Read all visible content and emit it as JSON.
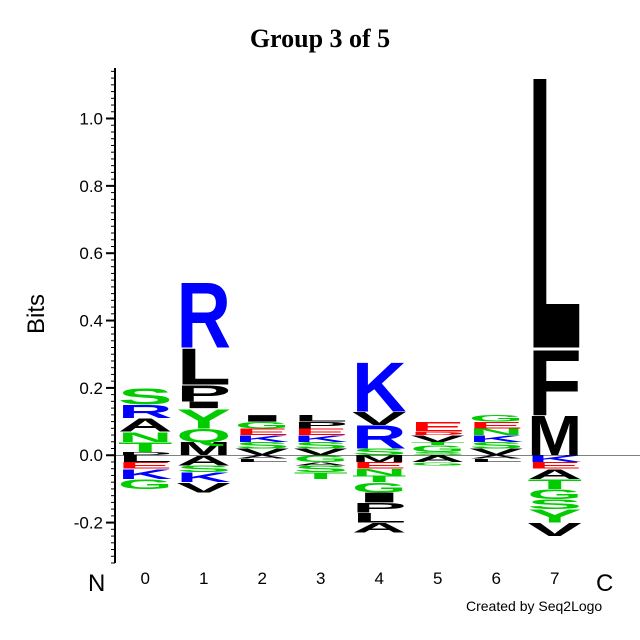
{
  "chart_data": {
    "type": "sequence-logo",
    "title": "Group 3 of 5",
    "ylabel": "Bits",
    "ylim": [
      -0.32,
      1.15
    ],
    "yticks": [
      -0.2,
      0.0,
      0.2,
      0.4,
      0.6,
      0.8,
      1.0
    ],
    "positions": [
      "0",
      "1",
      "2",
      "3",
      "4",
      "5",
      "6",
      "7"
    ],
    "n_label": "N",
    "c_label": "C",
    "colors": {
      "blue": "#0000ff",
      "green": "#00cc00",
      "red": "#ff0000",
      "black": "#000000"
    },
    "columns": [
      {
        "position": "0",
        "positive": [
          {
            "letter": "D",
            "bits": 0.01,
            "color": "black"
          },
          {
            "letter": "T",
            "bits": 0.03,
            "color": "green"
          },
          {
            "letter": "N",
            "bits": 0.03,
            "color": "green"
          },
          {
            "letter": "A",
            "bits": 0.04,
            "color": "black"
          },
          {
            "letter": "R",
            "bits": 0.04,
            "color": "blue"
          },
          {
            "letter": "S",
            "bits": 0.05,
            "color": "green"
          }
        ],
        "negative": [
          {
            "letter": "L",
            "bits": 0.02,
            "color": "black"
          },
          {
            "letter": "E",
            "bits": 0.02,
            "color": "red"
          },
          {
            "letter": "K",
            "bits": 0.03,
            "color": "blue"
          },
          {
            "letter": "G",
            "bits": 0.03,
            "color": "green"
          }
        ]
      },
      {
        "position": "1",
        "positive": [
          {
            "letter": "M",
            "bits": 0.04,
            "color": "black"
          },
          {
            "letter": "Q",
            "bits": 0.04,
            "color": "green"
          },
          {
            "letter": "Y",
            "bits": 0.06,
            "color": "green"
          },
          {
            "letter": "I",
            "bits": 0.02,
            "color": "black"
          },
          {
            "letter": "P",
            "bits": 0.05,
            "color": "black"
          },
          {
            "letter": "L",
            "bits": 0.11,
            "color": "black"
          },
          {
            "letter": "R",
            "bits": 0.2,
            "color": "blue"
          }
        ],
        "negative": [
          {
            "letter": "A",
            "bits": 0.03,
            "color": "black"
          },
          {
            "letter": "S",
            "bits": 0.02,
            "color": "green"
          },
          {
            "letter": "K",
            "bits": 0.03,
            "color": "blue"
          },
          {
            "letter": "V",
            "bits": 0.03,
            "color": "black"
          }
        ]
      },
      {
        "position": "2",
        "positive": [
          {
            "letter": "V",
            "bits": 0.02,
            "color": "black"
          },
          {
            "letter": "S",
            "bits": 0.02,
            "color": "green"
          },
          {
            "letter": "K",
            "bits": 0.02,
            "color": "blue"
          },
          {
            "letter": "E",
            "bits": 0.02,
            "color": "red"
          },
          {
            "letter": "G",
            "bits": 0.02,
            "color": "green"
          },
          {
            "letter": "I",
            "bits": 0.02,
            "color": "black"
          }
        ],
        "negative": [
          {
            "letter": "A",
            "bits": 0.01,
            "color": "black"
          },
          {
            "letter": "L",
            "bits": 0.01,
            "color": "black"
          }
        ]
      },
      {
        "position": "3",
        "positive": [
          {
            "letter": "V",
            "bits": 0.02,
            "color": "black"
          },
          {
            "letter": "S",
            "bits": 0.02,
            "color": "green"
          },
          {
            "letter": "K",
            "bits": 0.02,
            "color": "blue"
          },
          {
            "letter": "E",
            "bits": 0.02,
            "color": "red"
          },
          {
            "letter": "P",
            "bits": 0.02,
            "color": "black"
          },
          {
            "letter": "L",
            "bits": 0.02,
            "color": "black"
          }
        ],
        "negative": [
          {
            "letter": "G",
            "bits": 0.02,
            "color": "green"
          },
          {
            "letter": "A",
            "bits": 0.01,
            "color": "black"
          },
          {
            "letter": "S",
            "bits": 0.02,
            "color": "green"
          },
          {
            "letter": "T",
            "bits": 0.02,
            "color": "green"
          }
        ]
      },
      {
        "position": "4",
        "positive": [
          {
            "letter": "S",
            "bits": 0.02,
            "color": "green"
          },
          {
            "letter": "R",
            "bits": 0.07,
            "color": "blue"
          },
          {
            "letter": "V",
            "bits": 0.04,
            "color": "black"
          },
          {
            "letter": "K",
            "bits": 0.15,
            "color": "blue"
          }
        ],
        "negative": [
          {
            "letter": "M",
            "bits": 0.02,
            "color": "black"
          },
          {
            "letter": "E",
            "bits": 0.02,
            "color": "red"
          },
          {
            "letter": "N",
            "bits": 0.02,
            "color": "green"
          },
          {
            "letter": "T",
            "bits": 0.02,
            "color": "green"
          },
          {
            "letter": "G",
            "bits": 0.03,
            "color": "green"
          },
          {
            "letter": "I",
            "bits": 0.03,
            "color": "black"
          },
          {
            "letter": "P",
            "bits": 0.03,
            "color": "black"
          },
          {
            "letter": "L",
            "bits": 0.03,
            "color": "black"
          },
          {
            "letter": "A",
            "bits": 0.03,
            "color": "black"
          }
        ]
      },
      {
        "position": "5",
        "positive": [
          {
            "letter": "S",
            "bits": 0.01,
            "color": "green"
          },
          {
            "letter": "G",
            "bits": 0.02,
            "color": "green"
          },
          {
            "letter": "T",
            "bits": 0.01,
            "color": "green"
          },
          {
            "letter": "V",
            "bits": 0.02,
            "color": "black"
          },
          {
            "letter": "D",
            "bits": 0.01,
            "color": "red"
          },
          {
            "letter": "E",
            "bits": 0.03,
            "color": "red"
          }
        ],
        "negative": [
          {
            "letter": "A",
            "bits": 0.02,
            "color": "black"
          },
          {
            "letter": "G",
            "bits": 0.01,
            "color": "green"
          }
        ]
      },
      {
        "position": "6",
        "positive": [
          {
            "letter": "V",
            "bits": 0.02,
            "color": "black"
          },
          {
            "letter": "S",
            "bits": 0.02,
            "color": "green"
          },
          {
            "letter": "K",
            "bits": 0.02,
            "color": "blue"
          },
          {
            "letter": "N",
            "bits": 0.02,
            "color": "green"
          },
          {
            "letter": "E",
            "bits": 0.02,
            "color": "red"
          },
          {
            "letter": "G",
            "bits": 0.02,
            "color": "green"
          }
        ],
        "negative": [
          {
            "letter": "A",
            "bits": 0.01,
            "color": "black"
          },
          {
            "letter": "L",
            "bits": 0.01,
            "color": "black"
          }
        ]
      },
      {
        "position": "7",
        "positive": [
          {
            "letter": "M",
            "bits": 0.12,
            "color": "black"
          },
          {
            "letter": "F",
            "bits": 0.2,
            "color": "black"
          },
          {
            "letter": "L",
            "bits": 0.83,
            "color": "black"
          }
        ],
        "negative": [
          {
            "letter": "K",
            "bits": 0.02,
            "color": "blue"
          },
          {
            "letter": "E",
            "bits": 0.02,
            "color": "red"
          },
          {
            "letter": "A",
            "bits": 0.03,
            "color": "black"
          },
          {
            "letter": "T",
            "bits": 0.03,
            "color": "green"
          },
          {
            "letter": "G",
            "bits": 0.03,
            "color": "green"
          },
          {
            "letter": "S",
            "bits": 0.03,
            "color": "green"
          },
          {
            "letter": "Y",
            "bits": 0.04,
            "color": "green"
          },
          {
            "letter": "V",
            "bits": 0.04,
            "color": "black"
          }
        ]
      }
    ]
  },
  "footer": {
    "credit": "Created by Seq2Logo"
  }
}
